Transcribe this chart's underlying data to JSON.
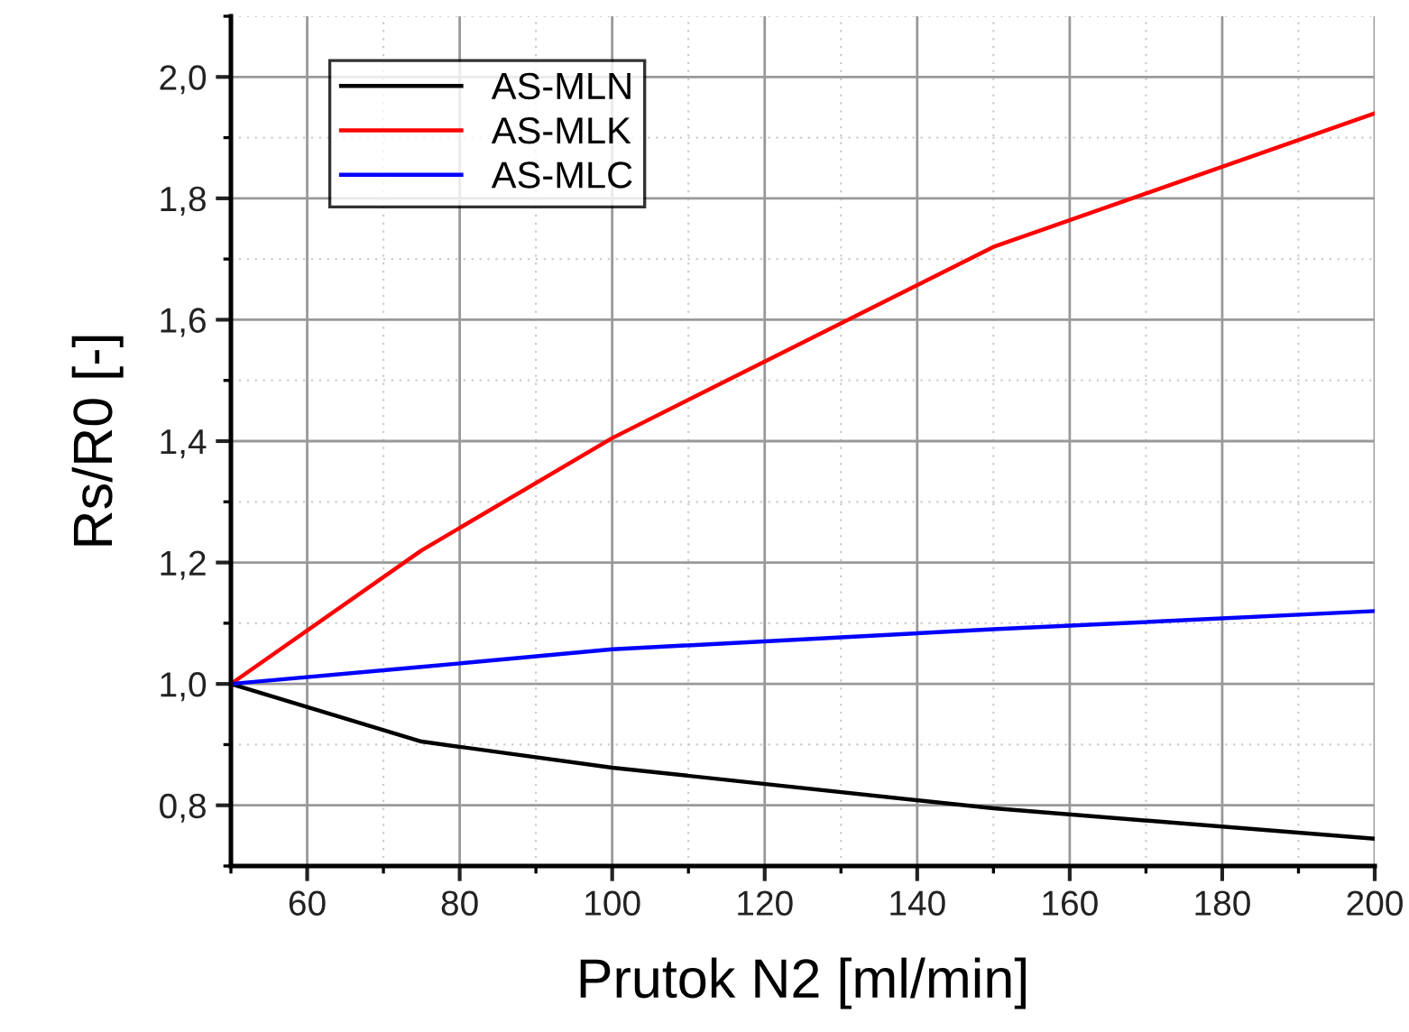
{
  "chart_data": {
    "type": "line",
    "xlabel": "Prutok N2 [ml/min]",
    "ylabel": "Rs/R0 [-]",
    "x": [
      50,
      75,
      100,
      150,
      200
    ],
    "series": [
      {
        "name": "AS-MLN",
        "color": "#000000",
        "values": [
          1.0,
          0.905,
          0.862,
          0.795,
          0.745
        ]
      },
      {
        "name": "AS-MLK",
        "color": "#ff0000",
        "values": [
          1.0,
          1.22,
          1.405,
          1.72,
          1.94
        ]
      },
      {
        "name": "AS-MLC",
        "color": "#0000ff",
        "values": [
          1.0,
          1.028,
          1.057,
          1.09,
          1.12
        ]
      }
    ],
    "xlim": [
      50,
      200
    ],
    "xticks": [
      60,
      80,
      100,
      120,
      140,
      160,
      180,
      200
    ],
    "ylim": [
      0.7,
      2.1
    ],
    "yticks": [
      {
        "value": 0.8,
        "label": "0,8"
      },
      {
        "value": 1.0,
        "label": "1,0"
      },
      {
        "value": 1.2,
        "label": "1,2"
      },
      {
        "value": 1.4,
        "label": "1,4"
      },
      {
        "value": 1.6,
        "label": "1,6"
      },
      {
        "value": 1.8,
        "label": "1,8"
      },
      {
        "value": 2.0,
        "label": "2,0"
      }
    ],
    "grid": true,
    "legend": "top left",
    "marker": "none",
    "line_style": "solid"
  }
}
